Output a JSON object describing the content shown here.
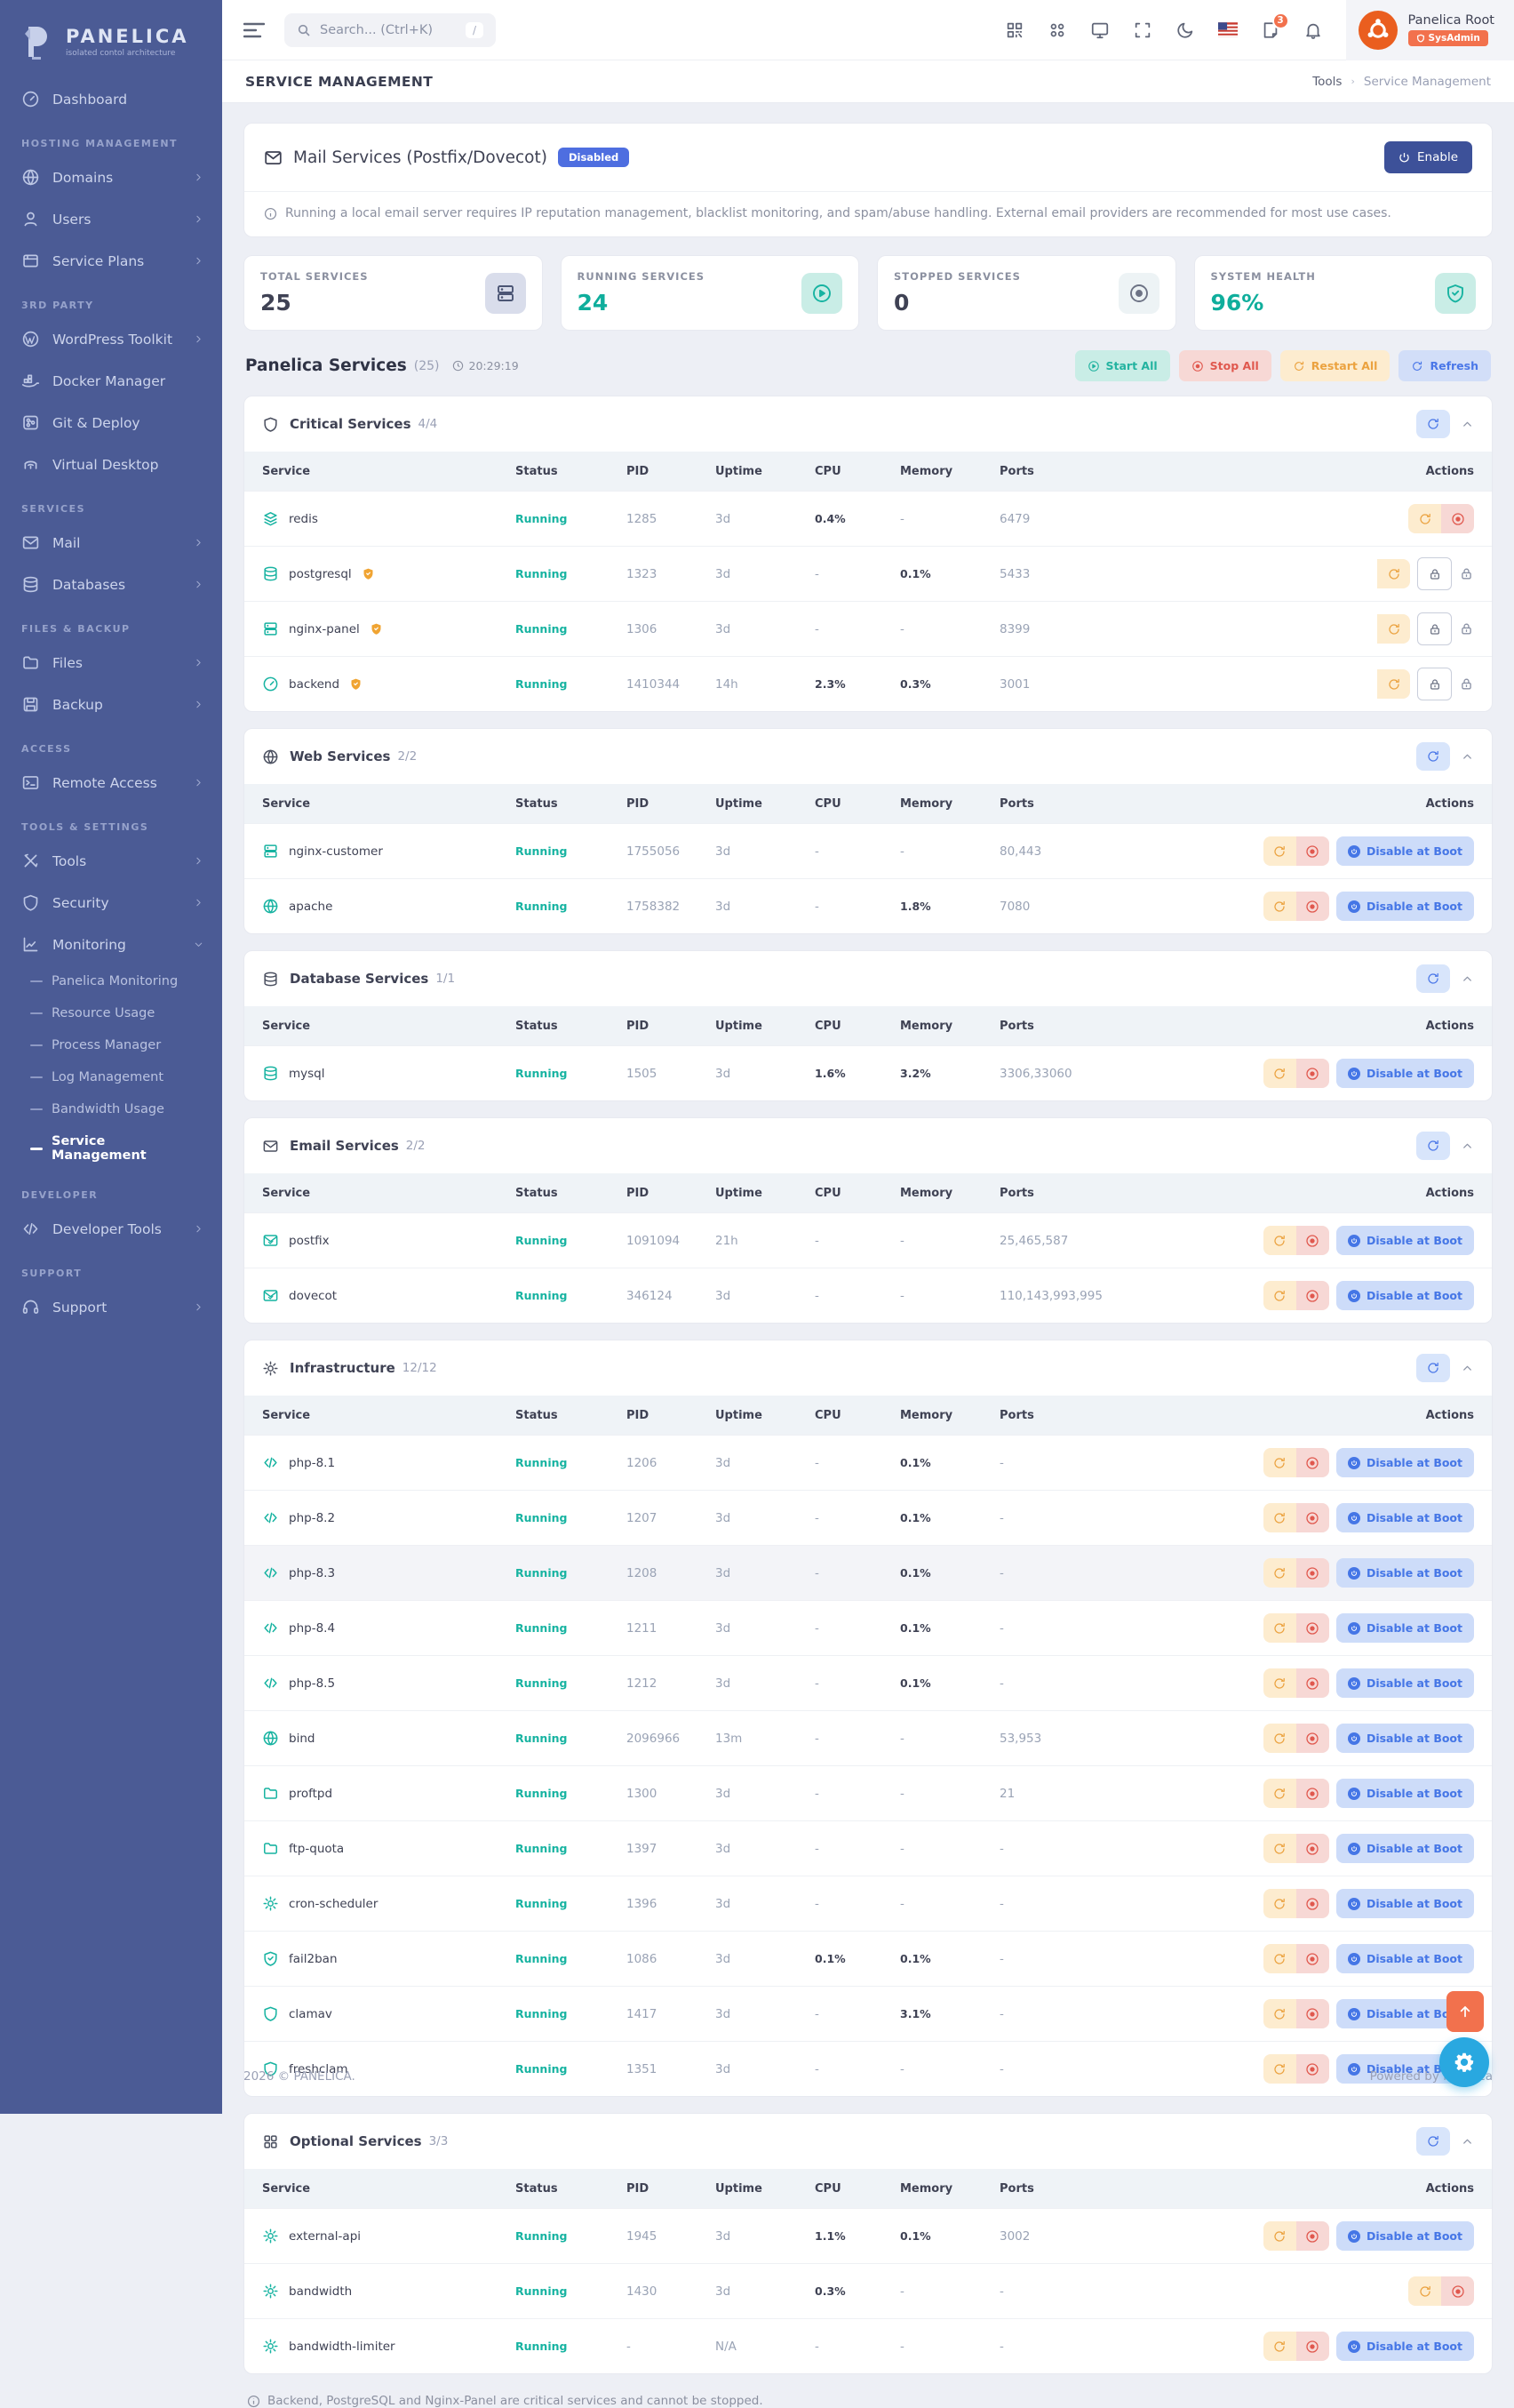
{
  "brand": {
    "name": "PANELICA",
    "tagline": "isolated contol architecture"
  },
  "topbar": {
    "search_placeholder": "Search... (Ctrl+K)",
    "shortcut_key": "/",
    "icons": [
      "qr-scanner",
      "apps-grid",
      "monitor",
      "fullscreen",
      "dark-mode",
      "language-flag",
      "changelog",
      "notifications"
    ],
    "notification_count": "3",
    "user": {
      "name": "Panelica Root",
      "role": "SysAdmin"
    }
  },
  "sidebar": {
    "sections": [
      {
        "title": "",
        "items": [
          {
            "label": "Dashboard",
            "icon": "gauge",
            "arrow": ""
          }
        ]
      },
      {
        "title": "HOSTING MANAGEMENT",
        "items": [
          {
            "label": "Domains",
            "icon": "globe",
            "arrow": ">"
          },
          {
            "label": "Users",
            "icon": "user",
            "arrow": ">"
          },
          {
            "label": "Service Plans",
            "icon": "box",
            "arrow": ">"
          }
        ]
      },
      {
        "title": "3RD PARTY",
        "items": [
          {
            "label": "WordPress Toolkit",
            "icon": "wordpress",
            "arrow": ">"
          },
          {
            "label": "Docker Manager",
            "icon": "docker",
            "arrow": ""
          },
          {
            "label": "Git & Deploy",
            "icon": "git",
            "arrow": ""
          },
          {
            "label": "Virtual Desktop",
            "icon": "desktop",
            "arrow": ""
          }
        ]
      },
      {
        "title": "SERVICES",
        "items": [
          {
            "label": "Mail",
            "icon": "mail",
            "arrow": ">"
          },
          {
            "label": "Databases",
            "icon": "database",
            "arrow": ">"
          }
        ]
      },
      {
        "title": "FILES & BACKUP",
        "items": [
          {
            "label": "Files",
            "icon": "folder",
            "arrow": ">"
          },
          {
            "label": "Backup",
            "icon": "save",
            "arrow": ">"
          }
        ]
      },
      {
        "title": "ACCESS",
        "items": [
          {
            "label": "Remote Access",
            "icon": "terminal",
            "arrow": ">"
          }
        ]
      },
      {
        "title": "TOOLS & SETTINGS",
        "items": [
          {
            "label": "Tools",
            "icon": "wrench",
            "arrow": ">"
          },
          {
            "label": "Security",
            "icon": "shield",
            "arrow": ">"
          },
          {
            "label": "Monitoring",
            "icon": "chart",
            "arrow": "v",
            "expanded": true,
            "children": [
              {
                "label": "Panelica Monitoring"
              },
              {
                "label": "Resource Usage"
              },
              {
                "label": "Process Manager"
              },
              {
                "label": "Log Management"
              },
              {
                "label": "Bandwidth Usage"
              },
              {
                "label": "Service Management",
                "active": true
              }
            ]
          }
        ]
      },
      {
        "title": "DEVELOPER",
        "items": [
          {
            "label": "Developer Tools",
            "icon": "code",
            "arrow": ">"
          }
        ]
      },
      {
        "title": "SUPPORT",
        "items": [
          {
            "label": "Support",
            "icon": "headset",
            "arrow": ">"
          }
        ]
      }
    ]
  },
  "page": {
    "title": "SERVICE MANAGEMENT",
    "breadcrumb_parent": "Tools",
    "breadcrumb_current": "Service Management"
  },
  "mail_card": {
    "title": "Mail Services (Postfix/Dovecot)",
    "status_badge": "Disabled",
    "enable_label": "Enable",
    "note": "Running a local email server requires IP reputation management, blacklist monitoring, and spam/abuse handling. External email providers are recommended for most use cases."
  },
  "stats": [
    {
      "label": "TOTAL SERVICES",
      "value": "25",
      "icon": "server",
      "value_color": "#3f4254",
      "icon_bg": "#d9ddeb",
      "icon_color": "#4b5574"
    },
    {
      "label": "RUNNING SERVICES",
      "value": "24",
      "icon": "play-circle",
      "value_color": "#0fae9c",
      "icon_bg": "#c9ede6",
      "icon_color": "#17b3a1"
    },
    {
      "label": "STOPPED SERVICES",
      "value": "0",
      "icon": "stop-circle",
      "value_color": "#3f4254",
      "icon_bg": "#edf3f5",
      "icon_color": "#6d7385"
    },
    {
      "label": "SYSTEM HEALTH",
      "value": "96%",
      "icon": "shield-check",
      "value_color": "#0fae9c",
      "icon_bg": "#c9ede6",
      "icon_color": "#17b3a1"
    }
  ],
  "services_header": {
    "title": "Panelica Services",
    "count": "(25)",
    "time": "20:29:19",
    "buttons": [
      {
        "label": "Start All",
        "icon": "play-circle",
        "style": "start"
      },
      {
        "label": "Stop All",
        "icon": "stop-circle",
        "style": "stop"
      },
      {
        "label": "Restart All",
        "icon": "refresh",
        "style": "restart"
      },
      {
        "label": "Refresh",
        "icon": "refresh",
        "style": "refresh"
      }
    ]
  },
  "columns": [
    "Service",
    "Status",
    "PID",
    "Uptime",
    "CPU",
    "Memory",
    "Ports",
    "Actions"
  ],
  "disable_label": "Disable at Boot",
  "groups": [
    {
      "name": "Critical Services",
      "count": "4/4",
      "icon": "shield",
      "rows": [
        {
          "service": "redis",
          "icon": "layers",
          "protected": false,
          "status": "Running",
          "pid": "1285",
          "uptime": "3d",
          "cpu": "0.4%",
          "memory": "-",
          "ports": "6479",
          "actions": "restart-stop"
        },
        {
          "service": "postgresql",
          "icon": "database",
          "protected": true,
          "status": "Running",
          "pid": "1323",
          "uptime": "3d",
          "cpu": "-",
          "memory": "0.1%",
          "ports": "5433",
          "actions": "restart-locks"
        },
        {
          "service": "nginx-panel",
          "icon": "server",
          "protected": true,
          "status": "Running",
          "pid": "1306",
          "uptime": "3d",
          "cpu": "-",
          "memory": "-",
          "ports": "8399",
          "actions": "restart-locks"
        },
        {
          "service": "backend",
          "icon": "gauge",
          "protected": true,
          "status": "Running",
          "pid": "1410344",
          "uptime": "14h",
          "cpu": "2.3%",
          "memory": "0.3%",
          "ports": "3001",
          "actions": "restart-locks"
        }
      ]
    },
    {
      "name": "Web Services",
      "count": "2/2",
      "icon": "globe",
      "rows": [
        {
          "service": "nginx-customer",
          "icon": "server",
          "protected": false,
          "status": "Running",
          "pid": "1755056",
          "uptime": "3d",
          "cpu": "-",
          "memory": "-",
          "ports": "80,443",
          "actions": "full"
        },
        {
          "service": "apache",
          "icon": "globe",
          "protected": false,
          "status": "Running",
          "pid": "1758382",
          "uptime": "3d",
          "cpu": "-",
          "memory": "1.8%",
          "ports": "7080",
          "actions": "full"
        }
      ]
    },
    {
      "name": "Database Services",
      "count": "1/1",
      "icon": "database",
      "rows": [
        {
          "service": "mysql",
          "icon": "database",
          "protected": false,
          "status": "Running",
          "pid": "1505",
          "uptime": "3d",
          "cpu": "1.6%",
          "memory": "3.2%",
          "ports": "3306,33060",
          "actions": "full"
        }
      ]
    },
    {
      "name": "Email Services",
      "count": "2/2",
      "icon": "mail",
      "rows": [
        {
          "service": "postfix",
          "icon": "mail-check",
          "protected": false,
          "status": "Running",
          "pid": "1091094",
          "uptime": "21h",
          "cpu": "-",
          "memory": "-",
          "ports": "25,465,587",
          "actions": "full"
        },
        {
          "service": "dovecot",
          "icon": "mail-check",
          "protected": false,
          "status": "Running",
          "pid": "346124",
          "uptime": "3d",
          "cpu": "-",
          "memory": "-",
          "ports": "110,143,993,995",
          "actions": "full"
        }
      ]
    },
    {
      "name": "Infrastructure",
      "count": "12/12",
      "icon": "gear",
      "rows": [
        {
          "service": "php-8.1",
          "icon": "code",
          "protected": false,
          "status": "Running",
          "pid": "1206",
          "uptime": "3d",
          "cpu": "-",
          "memory": "0.1%",
          "ports": "-",
          "actions": "full"
        },
        {
          "service": "php-8.2",
          "icon": "code",
          "protected": false,
          "status": "Running",
          "pid": "1207",
          "uptime": "3d",
          "cpu": "-",
          "memory": "0.1%",
          "ports": "-",
          "actions": "full"
        },
        {
          "service": "php-8.3",
          "icon": "code",
          "protected": false,
          "status": "Running",
          "pid": "1208",
          "uptime": "3d",
          "cpu": "-",
          "memory": "0.1%",
          "ports": "-",
          "actions": "full",
          "highlighted": true
        },
        {
          "service": "php-8.4",
          "icon": "code",
          "protected": false,
          "status": "Running",
          "pid": "1211",
          "uptime": "3d",
          "cpu": "-",
          "memory": "0.1%",
          "ports": "-",
          "actions": "full"
        },
        {
          "service": "php-8.5",
          "icon": "code",
          "protected": false,
          "status": "Running",
          "pid": "1212",
          "uptime": "3d",
          "cpu": "-",
          "memory": "0.1%",
          "ports": "-",
          "actions": "full"
        },
        {
          "service": "bind",
          "icon": "globe",
          "protected": false,
          "status": "Running",
          "pid": "2096966",
          "uptime": "13m",
          "cpu": "-",
          "memory": "-",
          "ports": "53,953",
          "actions": "full"
        },
        {
          "service": "proftpd",
          "icon": "folder",
          "protected": false,
          "status": "Running",
          "pid": "1300",
          "uptime": "3d",
          "cpu": "-",
          "memory": "-",
          "ports": "21",
          "actions": "full"
        },
        {
          "service": "ftp-quota",
          "icon": "folder",
          "protected": false,
          "status": "Running",
          "pid": "1397",
          "uptime": "3d",
          "cpu": "-",
          "memory": "-",
          "ports": "-",
          "actions": "full"
        },
        {
          "service": "cron-scheduler",
          "icon": "gear",
          "protected": false,
          "status": "Running",
          "pid": "1396",
          "uptime": "3d",
          "cpu": "-",
          "memory": "-",
          "ports": "-",
          "actions": "full"
        },
        {
          "service": "fail2ban",
          "icon": "shield-check",
          "protected": false,
          "status": "Running",
          "pid": "1086",
          "uptime": "3d",
          "cpu": "0.1%",
          "memory": "0.1%",
          "ports": "-",
          "actions": "full"
        },
        {
          "service": "clamav",
          "icon": "shield",
          "protected": false,
          "status": "Running",
          "pid": "1417",
          "uptime": "3d",
          "cpu": "-",
          "memory": "3.1%",
          "ports": "-",
          "actions": "full"
        },
        {
          "service": "freshclam",
          "icon": "shield",
          "protected": false,
          "status": "Running",
          "pid": "1351",
          "uptime": "3d",
          "cpu": "-",
          "memory": "-",
          "ports": "-",
          "actions": "full"
        }
      ]
    },
    {
      "name": "Optional Services",
      "count": "3/3",
      "icon": "grid",
      "rows": [
        {
          "service": "external-api",
          "icon": "gear",
          "protected": false,
          "status": "Running",
          "pid": "1945",
          "uptime": "3d",
          "cpu": "1.1%",
          "memory": "0.1%",
          "ports": "3002",
          "actions": "full"
        },
        {
          "service": "bandwidth",
          "icon": "gear",
          "protected": false,
          "status": "Running",
          "pid": "1430",
          "uptime": "3d",
          "cpu": "0.3%",
          "memory": "-",
          "ports": "-",
          "actions": "restart-stop"
        },
        {
          "service": "bandwidth-limiter",
          "icon": "gear",
          "protected": false,
          "status": "Running",
          "pid": "-",
          "uptime": "N/A",
          "cpu": "-",
          "memory": "-",
          "ports": "-",
          "actions": "full"
        }
      ]
    }
  ],
  "bottom_note": "Backend, PostgreSQL and Nginx-Panel are critical services and cannot be stopped.",
  "footer": {
    "left": "2026 © PANELICA.",
    "right": "Powered by Panelica"
  }
}
